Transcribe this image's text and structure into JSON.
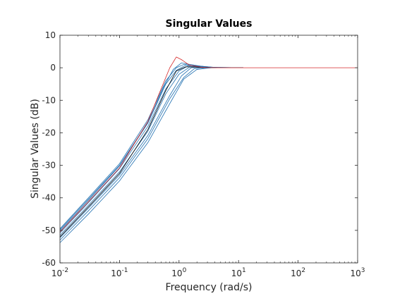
{
  "chart_data": {
    "type": "line",
    "title": "Singular Values",
    "xlabel": "Frequency (rad/s)",
    "ylabel": "Singular Values (dB)",
    "x_scale": "log",
    "xlim": [
      0.01,
      1000
    ],
    "ylim": [
      -60,
      10
    ],
    "x_tick_exponents": [
      -2,
      -1,
      0,
      1,
      2,
      3
    ],
    "x_tick_base": "10",
    "y_ticks": [
      -60,
      -50,
      -40,
      -30,
      -20,
      -10,
      0,
      10
    ],
    "grid": false,
    "legend": "none",
    "colors": {
      "blue": "#1f6fb0",
      "red": "#d62728",
      "black": "#000000",
      "axis": "#262626"
    },
    "series": [
      {
        "color": "blue",
        "values": [
          [
            0.01,
            -49.5
          ],
          [
            0.03,
            -40.0
          ],
          [
            0.1,
            -29.5
          ],
          [
            0.3,
            -16.0
          ],
          [
            0.6,
            -4.0
          ],
          [
            0.9,
            0.0
          ],
          [
            1.2,
            1.0
          ],
          [
            2,
            0.5
          ],
          [
            4,
            0.0
          ],
          [
            12,
            0.0
          ]
        ]
      },
      {
        "color": "blue",
        "values": [
          [
            0.01,
            -50.2
          ],
          [
            0.03,
            -40.8
          ],
          [
            0.1,
            -30.2
          ],
          [
            0.3,
            -17.0
          ],
          [
            0.6,
            -5.0
          ],
          [
            0.9,
            -0.8
          ],
          [
            1.3,
            0.8
          ],
          [
            2,
            0.6
          ],
          [
            4,
            0.1
          ],
          [
            12,
            0.0
          ]
        ]
      },
      {
        "color": "blue",
        "values": [
          [
            0.01,
            -50.8
          ],
          [
            0.03,
            -41.5
          ],
          [
            0.1,
            -31.0
          ],
          [
            0.3,
            -18.0
          ],
          [
            0.6,
            -6.5
          ],
          [
            1.0,
            -1.0
          ],
          [
            1.4,
            0.5
          ],
          [
            2.5,
            0.4
          ],
          [
            5,
            0.0
          ],
          [
            12,
            0.0
          ]
        ]
      },
      {
        "color": "blue",
        "values": [
          [
            0.01,
            -51.5
          ],
          [
            0.03,
            -42.3
          ],
          [
            0.1,
            -32.0
          ],
          [
            0.3,
            -19.5
          ],
          [
            0.6,
            -8.0
          ],
          [
            1.0,
            -2.0
          ],
          [
            1.5,
            0.2
          ],
          [
            2.5,
            0.3
          ],
          [
            5,
            0.0
          ],
          [
            12,
            0.0
          ]
        ]
      },
      {
        "color": "blue",
        "values": [
          [
            0.01,
            -52.3
          ],
          [
            0.03,
            -43.2
          ],
          [
            0.1,
            -33.0
          ],
          [
            0.3,
            -20.8
          ],
          [
            0.7,
            -8.5
          ],
          [
            1.1,
            -2.5
          ],
          [
            1.6,
            0.0
          ],
          [
            3,
            0.2
          ],
          [
            6,
            0.0
          ],
          [
            12,
            0.0
          ]
        ]
      },
      {
        "color": "blue",
        "values": [
          [
            0.01,
            -53.0
          ],
          [
            0.03,
            -44.0
          ],
          [
            0.1,
            -33.8
          ],
          [
            0.3,
            -21.8
          ],
          [
            0.7,
            -9.5
          ],
          [
            1.2,
            -3.0
          ],
          [
            1.8,
            -0.3
          ],
          [
            3,
            0.1
          ],
          [
            6,
            0.0
          ],
          [
            12,
            0.0
          ]
        ]
      },
      {
        "color": "blue",
        "values": [
          [
            0.01,
            -53.8
          ],
          [
            0.03,
            -45.0
          ],
          [
            0.1,
            -34.8
          ],
          [
            0.3,
            -23.0
          ],
          [
            0.7,
            -11.0
          ],
          [
            1.2,
            -3.5
          ],
          [
            2,
            -0.5
          ],
          [
            3.5,
            0.0
          ],
          [
            7,
            0.0
          ],
          [
            12,
            0.0
          ]
        ]
      },
      {
        "color": "blue",
        "values": [
          [
            0.01,
            -49.8
          ],
          [
            0.03,
            -40.4
          ],
          [
            0.1,
            -30.0
          ],
          [
            0.3,
            -16.8
          ],
          [
            0.55,
            -6.0
          ],
          [
            0.8,
            -0.5
          ],
          [
            1.1,
            1.5
          ],
          [
            1.8,
            0.8
          ],
          [
            3,
            0.2
          ],
          [
            12,
            0.0
          ]
        ]
      },
      {
        "color": "red",
        "values": [
          [
            0.01,
            -50.5
          ],
          [
            0.03,
            -41.2
          ],
          [
            0.1,
            -30.8
          ],
          [
            0.3,
            -16.5
          ],
          [
            0.5,
            -6.5
          ],
          [
            0.7,
            0.0
          ],
          [
            0.9,
            3.3
          ],
          [
            1.1,
            2.5
          ],
          [
            1.5,
            0.8
          ],
          [
            2.5,
            0.1
          ],
          [
            5,
            0.0
          ],
          [
            1000,
            0.0
          ]
        ]
      },
      {
        "color": "black",
        "values": [
          [
            0.01,
            -52.0
          ],
          [
            0.03,
            -42.8
          ],
          [
            0.1,
            -32.5
          ],
          [
            0.3,
            -19.0
          ],
          [
            0.6,
            -7.0
          ],
          [
            0.9,
            -1.0
          ],
          [
            1.3,
            0.3
          ],
          [
            2,
            0.2
          ],
          [
            4,
            0.0
          ],
          [
            12,
            0.0
          ]
        ]
      }
    ]
  }
}
